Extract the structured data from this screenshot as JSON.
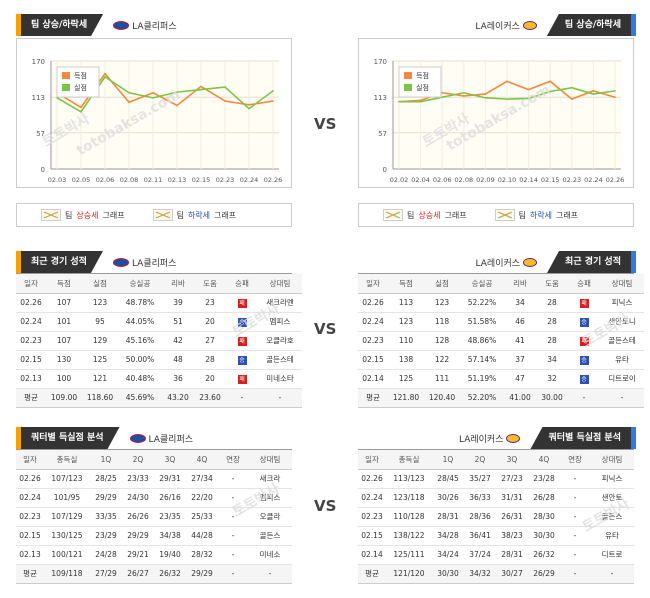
{
  "clippers_name": "LA클리퍼스",
  "lakers_name": "LA레이커스",
  "vs_label": "VS",
  "trend_title": "팀 상승/하락세",
  "recent_title": "최근 경기 성적",
  "quarter_title": "쿼터별 득실점 분석",
  "legend": {
    "scored": "득점",
    "allowed": "실점"
  },
  "graph_legend": {
    "team": "팀",
    "up": "상승세",
    "down": "하락세",
    "graph": "그래프"
  },
  "watermark": [
    "토토박사",
    "totobaksa.com"
  ],
  "colors": {
    "scored": "#f5883a",
    "allowed": "#7cc444",
    "win": "#2d4fb0",
    "loss": "#d62020",
    "accent_left": "#f5a100",
    "accent_right": "#2d7be0"
  },
  "chart_data": [
    {
      "type": "line",
      "title": "LA클리퍼스",
      "yticks": [
        0,
        57,
        113,
        170
      ],
      "ylim": [
        0,
        170
      ],
      "categories": [
        "02.03",
        "02.05",
        "02.06",
        "02.08",
        "02.11",
        "02.13",
        "02.15",
        "02.23",
        "02.24",
        "02.26"
      ],
      "series": [
        {
          "name": "득점",
          "values": [
            120,
            97,
            150,
            105,
            120,
            100,
            130,
            107,
            101,
            107
          ]
        },
        {
          "name": "실점",
          "values": [
            112,
            90,
            145,
            120,
            112,
            121,
            125,
            129,
            95,
            123
          ]
        }
      ]
    },
    {
      "type": "line",
      "title": "LA레이커스",
      "yticks": [
        0,
        57,
        113,
        170
      ],
      "ylim": [
        0,
        170
      ],
      "categories": [
        "02.02",
        "02.04",
        "02.06",
        "02.08",
        "02.09",
        "02.10",
        "02.14",
        "02.15",
        "02.23",
        "02.24",
        "02.26"
      ],
      "series": [
        {
          "name": "득점",
          "values": [
            106,
            108,
            120,
            115,
            118,
            138,
            125,
            138,
            110,
            123,
            113
          ]
        },
        {
          "name": "실점",
          "values": [
            106,
            106,
            113,
            120,
            112,
            110,
            111,
            122,
            128,
            118,
            123
          ]
        }
      ]
    }
  ],
  "recent_headers_left": [
    "일자",
    "득점",
    "실점",
    "승실공",
    "리바",
    "도움",
    "승패",
    "상대팀"
  ],
  "recent_headers_right": [
    "일자",
    "득점",
    "실점",
    "승실공",
    "리바",
    "도움",
    "승패",
    "상대팀"
  ],
  "recent_left": [
    [
      "02.26",
      "107",
      "123",
      "48.78%",
      "39",
      "23",
      "패",
      "새크라멘"
    ],
    [
      "02.24",
      "101",
      "95",
      "44.05%",
      "51",
      "20",
      "승",
      "멤피스"
    ],
    [
      "02.23",
      "107",
      "129",
      "45.16%",
      "42",
      "27",
      "패",
      "오클라호"
    ],
    [
      "02.15",
      "130",
      "125",
      "50.00%",
      "48",
      "28",
      "승",
      "골든스테"
    ],
    [
      "02.13",
      "100",
      "121",
      "40.48%",
      "36",
      "20",
      "패",
      "미네소타"
    ]
  ],
  "recent_left_avg": [
    "평균",
    "109.00",
    "118.60",
    "45.69%",
    "43.20",
    "23.60",
    "-",
    "-"
  ],
  "recent_right": [
    [
      "02.26",
      "113",
      "123",
      "52.22%",
      "34",
      "28",
      "패",
      "피닉스"
    ],
    [
      "02.24",
      "123",
      "118",
      "51.58%",
      "46",
      "28",
      "승",
      "샌안토니"
    ],
    [
      "02.23",
      "110",
      "128",
      "48.86%",
      "41",
      "28",
      "패",
      "골든스테"
    ],
    [
      "02.15",
      "138",
      "122",
      "57.14%",
      "37",
      "34",
      "승",
      "유타"
    ],
    [
      "02.14",
      "125",
      "111",
      "51.19%",
      "47",
      "32",
      "승",
      "디트로이"
    ]
  ],
  "recent_right_avg": [
    "평균",
    "121.80",
    "120.40",
    "52.20%",
    "41.00",
    "30.00",
    "-",
    "-"
  ],
  "quarter_headers": [
    "일자",
    "총득실",
    "1Q",
    "2Q",
    "3Q",
    "4Q",
    "연장",
    "상대팀"
  ],
  "quarter_left": [
    [
      "02.26",
      "107/123",
      "28/25",
      "23/33",
      "29/31",
      "27/34",
      "-",
      "새크라"
    ],
    [
      "02.24",
      "101/95",
      "29/29",
      "24/30",
      "26/16",
      "22/20",
      "-",
      "멤피스"
    ],
    [
      "02.23",
      "107/129",
      "33/35",
      "26/26",
      "23/35",
      "25/33",
      "-",
      "오클라"
    ],
    [
      "02.15",
      "130/125",
      "23/29",
      "29/29",
      "34/38",
      "44/28",
      "-",
      "골든스"
    ],
    [
      "02.13",
      "100/121",
      "24/28",
      "29/21",
      "19/40",
      "28/32",
      "-",
      "미네소"
    ]
  ],
  "quarter_left_avg": [
    "평균",
    "109/118",
    "27/29",
    "26/27",
    "26/32",
    "29/29",
    "-",
    "-"
  ],
  "quarter_right": [
    [
      "02.26",
      "113/123",
      "28/45",
      "35/27",
      "27/23",
      "23/28",
      "-",
      "피닉스"
    ],
    [
      "02.24",
      "123/118",
      "30/26",
      "36/33",
      "31/31",
      "26/28",
      "-",
      "샌안토"
    ],
    [
      "02.23",
      "110/128",
      "28/31",
      "28/36",
      "26/31",
      "28/30",
      "-",
      "골든스"
    ],
    [
      "02.15",
      "138/122",
      "34/28",
      "36/41",
      "38/23",
      "30/30",
      "-",
      "유타"
    ],
    [
      "02.14",
      "125/111",
      "34/24",
      "37/24",
      "28/31",
      "26/32",
      "-",
      "디트로"
    ]
  ],
  "quarter_right_avg": [
    "평균",
    "121/120",
    "30/30",
    "34/32",
    "30/27",
    "26/29",
    "-",
    "-"
  ]
}
